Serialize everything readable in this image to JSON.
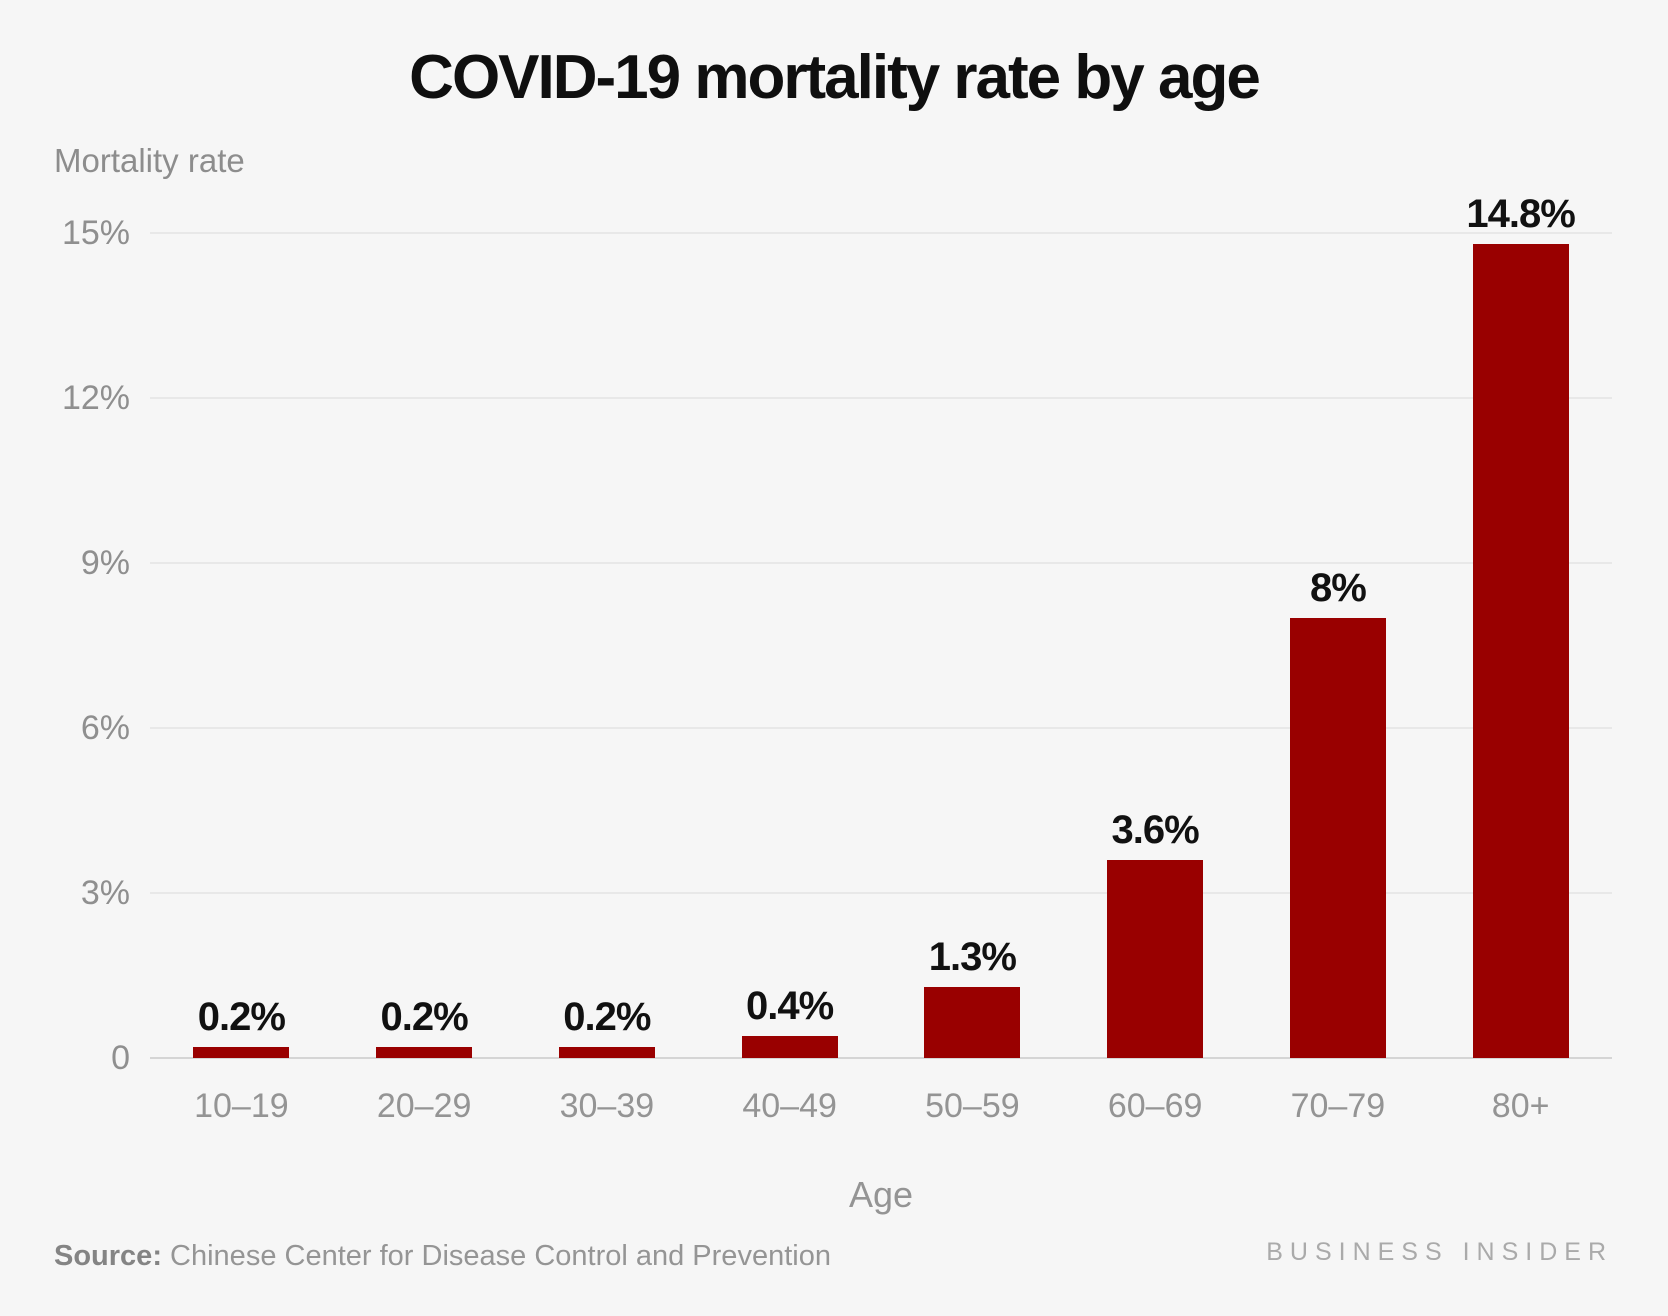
{
  "chart_data": {
    "type": "bar",
    "title": "COVID-19 mortality rate by age",
    "xlabel": "Age",
    "ylabel": "Mortality rate",
    "categories": [
      "10–19",
      "20–29",
      "30–39",
      "40–49",
      "50–59",
      "60–69",
      "70–79",
      "80+"
    ],
    "values": [
      0.2,
      0.2,
      0.2,
      0.4,
      1.3,
      3.6,
      8,
      14.8
    ],
    "value_labels": [
      "0.2%",
      "0.2%",
      "0.2%",
      "0.4%",
      "1.3%",
      "3.6%",
      "8%",
      "14.8%"
    ],
    "ylim": [
      0,
      15
    ],
    "yticks": [
      0,
      3,
      6,
      9,
      12,
      15
    ],
    "ytick_labels": [
      "0",
      "3%",
      "6%",
      "9%",
      "12%",
      "15%"
    ],
    "grid": true,
    "legend": null,
    "bar_color": "#990000"
  },
  "colors": {
    "background": "#f6f6f6",
    "bar": "#990000",
    "gridline": "#e8e8e8",
    "zero_line": "#d5d5d5",
    "axis_text": "#8f8f8f",
    "title_text": "#0f0f0f"
  },
  "footer": {
    "source_label": "Source:",
    "source_text": " Chinese Center for Disease Control and Prevention",
    "brand": "BUSINESS INSIDER"
  }
}
